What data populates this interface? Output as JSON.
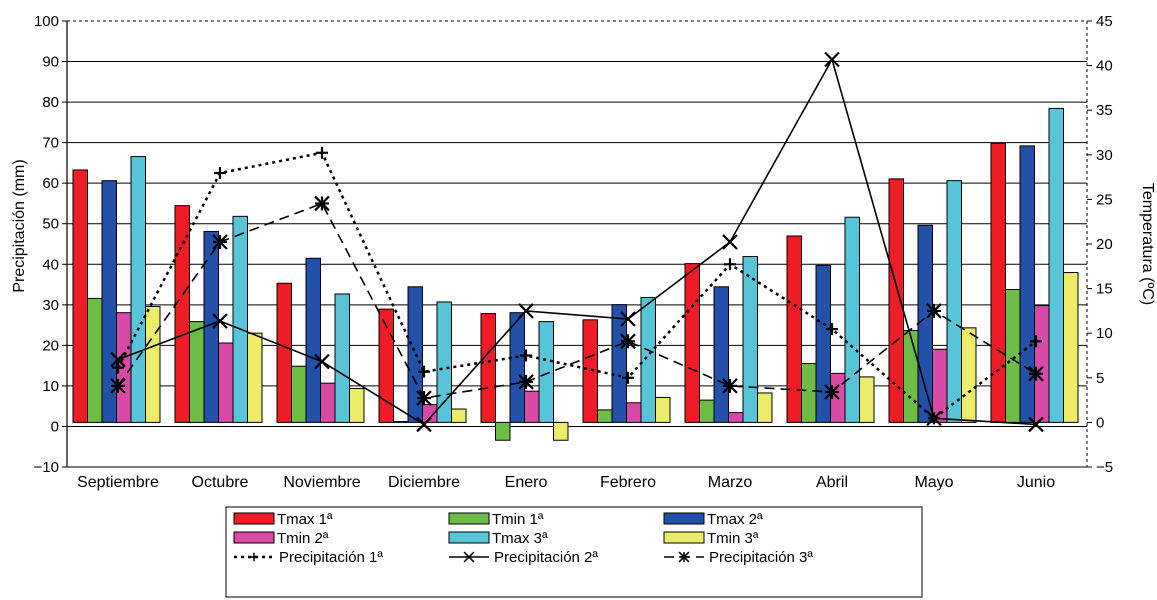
{
  "chart_data": {
    "type": "bar",
    "categories": [
      "Septiembre",
      "Octubre",
      "Noviembre",
      "Diciembre",
      "Enero",
      "Febrero",
      "Marzo",
      "Abril",
      "Mayo",
      "Junio"
    ],
    "ylabel": "Precipitación (mm)",
    "y2label": "Temperatura (ºC)",
    "ylim": [
      -10,
      100
    ],
    "y2lim": [
      -5,
      45
    ],
    "yticks": [
      -10,
      0,
      10,
      20,
      30,
      40,
      50,
      60,
      70,
      80,
      90,
      100
    ],
    "y2ticks": [
      -5,
      0,
      5,
      10,
      15,
      20,
      25,
      30,
      35,
      40,
      45
    ],
    "grid": true,
    "legend_position": "bottom",
    "bar_series": [
      {
        "name": "Tmax 1ª",
        "color": "#ee1c25",
        "axis": "right",
        "values": [
          28.3,
          24.3,
          15.6,
          12.7,
          12.2,
          11.5,
          17.8,
          20.9,
          27.3,
          31.3
        ]
      },
      {
        "name": "Tmin 1ª",
        "color": "#6cbc45",
        "axis": "right",
        "values": [
          13.9,
          11.3,
          6.3,
          0.1,
          -2.0,
          1.4,
          2.5,
          6.6,
          10.3,
          14.9
        ]
      },
      {
        "name": "Tmax 2ª",
        "color": "#2350a8",
        "axis": "right",
        "values": [
          27.1,
          21.4,
          18.4,
          15.2,
          12.3,
          13.2,
          15.2,
          17.6,
          22.1,
          31.0
        ]
      },
      {
        "name": "Tmin 2ª",
        "color": "#d94aa6",
        "axis": "right",
        "values": [
          12.3,
          8.9,
          4.4,
          2.0,
          3.5,
          2.2,
          1.1,
          5.5,
          8.2,
          13.1
        ]
      },
      {
        "name": "Tmax 3ª",
        "color": "#58c4d8",
        "axis": "right",
        "values": [
          29.8,
          23.1,
          14.4,
          13.5,
          11.3,
          14.0,
          18.6,
          23.0,
          27.1,
          35.2
        ]
      },
      {
        "name": "Tmin 3ª",
        "color": "#ecec6a",
        "axis": "right",
        "values": [
          13.0,
          10.0,
          3.8,
          1.5,
          -2.0,
          2.8,
          3.3,
          5.1,
          10.6,
          16.8
        ]
      }
    ],
    "line_series": [
      {
        "name": "Precipitación 1ª",
        "axis": "left",
        "dash": "3,4",
        "width": 2.5,
        "marker": "plus",
        "values": [
          14.5,
          62.5,
          67.5,
          13.5,
          17.5,
          12.0,
          40.0,
          24.0,
          2.0,
          21.0
        ]
      },
      {
        "name": "Precipitación 2ª",
        "axis": "left",
        "dash": "",
        "width": 1.6,
        "marker": "x",
        "values": [
          16.5,
          26.0,
          16.0,
          0.5,
          28.5,
          26.5,
          45.5,
          90.5,
          2.0,
          0.5
        ]
      },
      {
        "name": "Precipitación 3ª",
        "axis": "left",
        "dash": "10,6",
        "width": 1.6,
        "marker": "star",
        "values": [
          10.0,
          45.5,
          55.0,
          7.0,
          11.0,
          21.0,
          10.0,
          8.5,
          28.5,
          13.0
        ]
      }
    ]
  }
}
